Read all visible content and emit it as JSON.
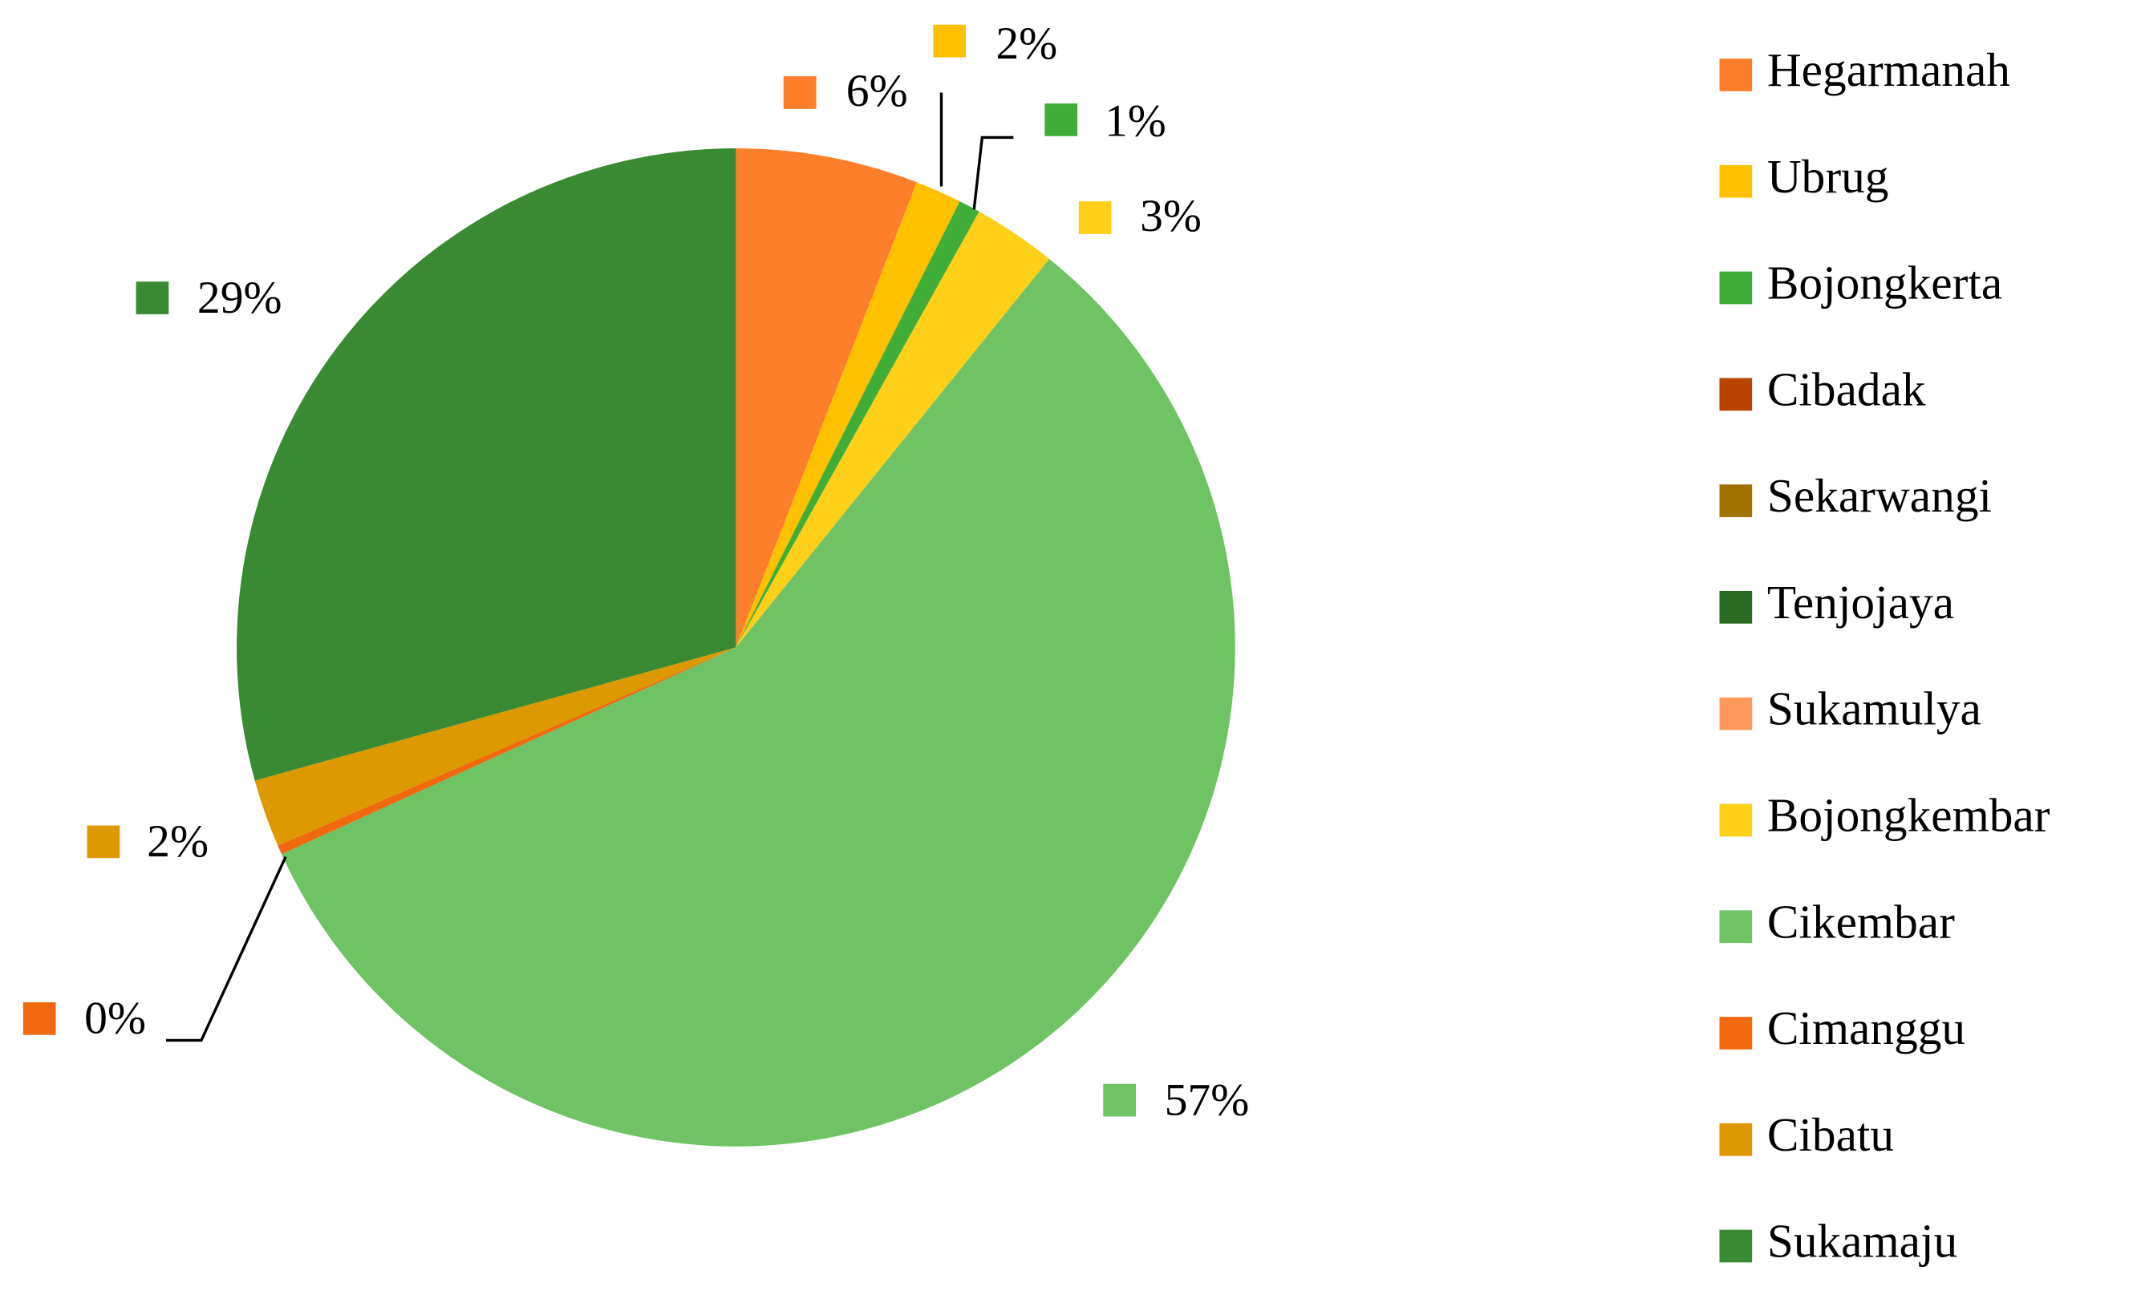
{
  "chart_data": {
    "type": "pie",
    "categories": [
      "Hegarmanah",
      "Ubrug",
      "Bojongkerta",
      "Cibadak",
      "Sekarwangi",
      "Tenjojaya",
      "Sukamulya",
      "Bojongkembar",
      "Cikembar",
      "Cimanggu",
      "Cibatu",
      "Sukamaju"
    ],
    "values": [
      5.9,
      1.5,
      0.7,
      0,
      0,
      0,
      0,
      2.7,
      57.4,
      0.3,
      2.2,
      29.3
    ],
    "value_labels": [
      "6%",
      "2%",
      "1%",
      null,
      null,
      null,
      null,
      "3%",
      "57%",
      "0%",
      "2%",
      "29%"
    ],
    "colors": [
      "#fd7f2c",
      "#ffc000",
      "#3fad38",
      "#b84400",
      "#a27200",
      "#2a6a23",
      "#ff9a5c",
      "#ffcf1a",
      "#6fc364",
      "#f0690f",
      "#dc9a00",
      "#398a32"
    ],
    "legend": "right"
  }
}
